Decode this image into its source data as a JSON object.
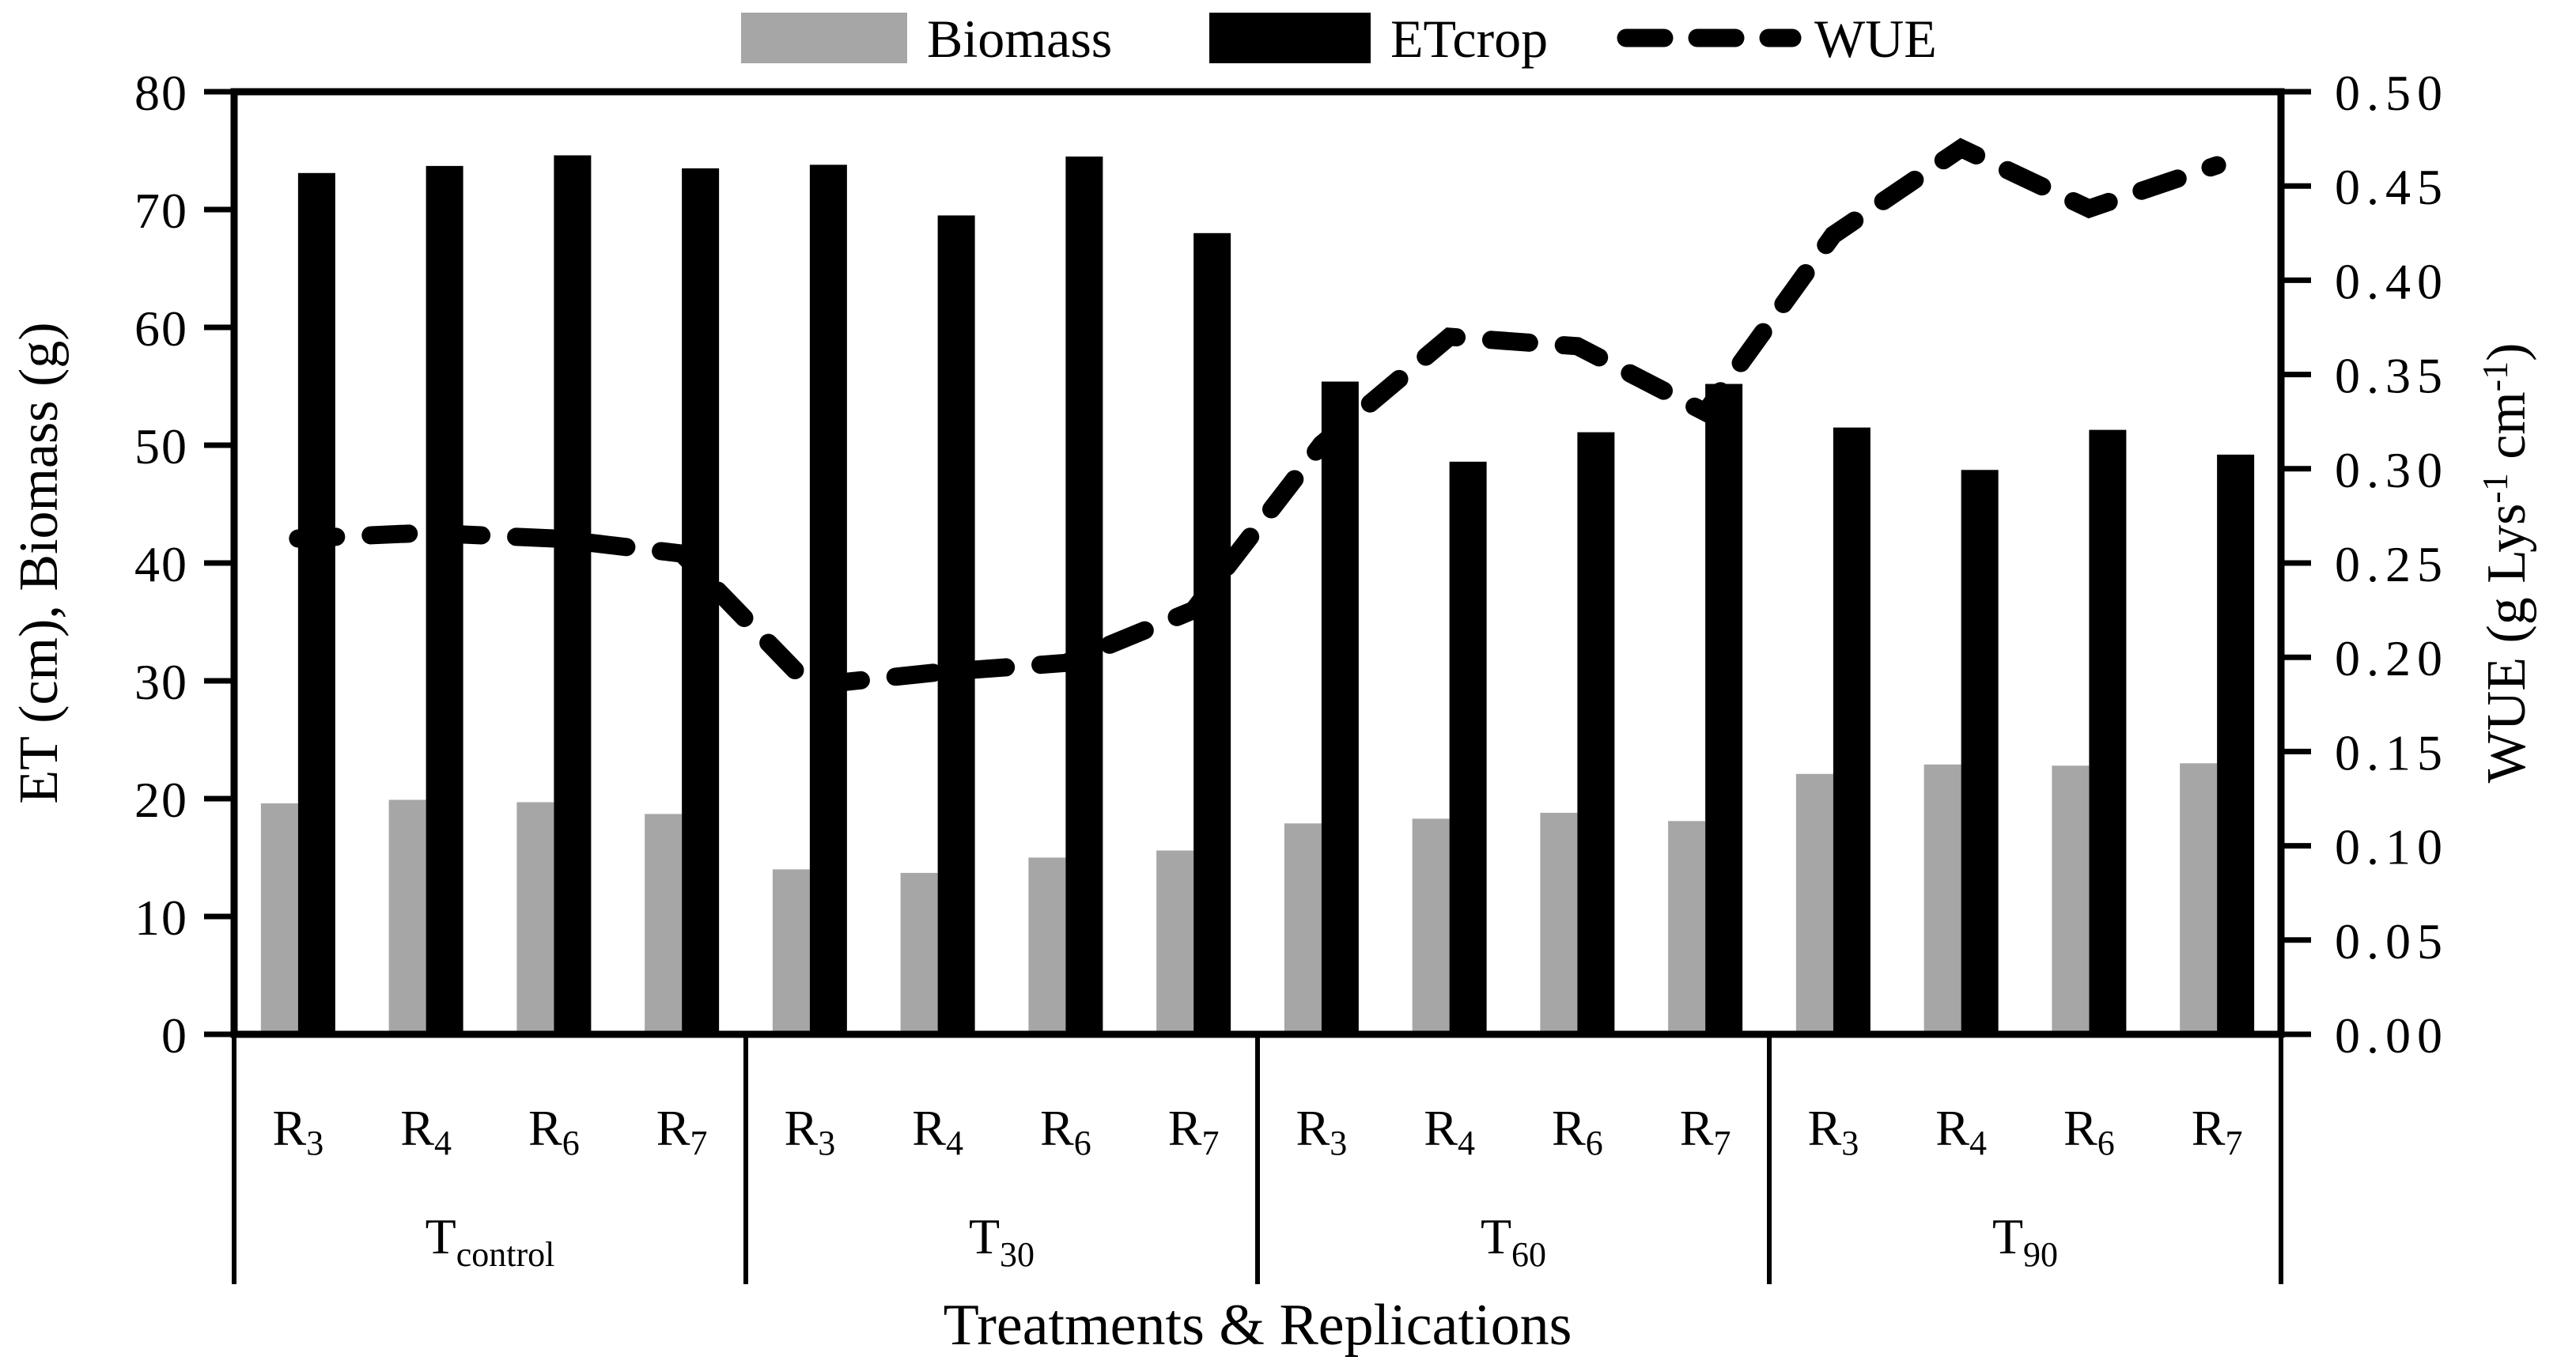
{
  "chart_data": {
    "type": "combo-bar-line",
    "legend": [
      "Biomass",
      "ETcrop",
      "WUE"
    ],
    "x_axis": {
      "title": "Treatments & Replications",
      "replication_prefix": "R",
      "groups": [
        {
          "label_main": "T",
          "label_sub": "control",
          "replications": [
            "3",
            "4",
            "6",
            "7"
          ]
        },
        {
          "label_main": "T",
          "label_sub": "30",
          "replications": [
            "3",
            "4",
            "6",
            "7"
          ]
        },
        {
          "label_main": "T",
          "label_sub": "60",
          "replications": [
            "3",
            "4",
            "6",
            "7"
          ]
        },
        {
          "label_main": "T",
          "label_sub": "90",
          "replications": [
            "3",
            "4",
            "6",
            "7"
          ]
        }
      ]
    },
    "left_axis": {
      "title": "ET (cm), Biomass (g)",
      "min": 0,
      "max": 80,
      "step": 10,
      "tick_labels": [
        "0",
        "10",
        "20",
        "30",
        "40",
        "50",
        "60",
        "70",
        "80"
      ]
    },
    "right_axis": {
      "title_text": "WUE (g Lys-1 cm-1)",
      "title_parts": [
        {
          "t": "WUE (g Lys"
        },
        {
          "t": "-1",
          "sup": true
        },
        {
          "t": " cm"
        },
        {
          "t": "-1",
          "sup": true
        },
        {
          "t": ")"
        }
      ],
      "min": 0.0,
      "max": 0.5,
      "step": 0.05,
      "tick_labels": [
        "0.00",
        "0.05",
        "0.10",
        "0.15",
        "0.20",
        "0.25",
        "0.30",
        "0.35",
        "0.40",
        "0.45",
        "0.50"
      ]
    },
    "series": [
      {
        "name": "Biomass",
        "type": "bar",
        "axis": "left",
        "color": "#a6a6a6",
        "values": [
          19.6,
          19.9,
          19.7,
          18.7,
          14.0,
          13.7,
          15.0,
          15.6,
          17.9,
          18.3,
          18.8,
          18.1,
          22.1,
          22.9,
          22.8,
          23.0
        ]
      },
      {
        "name": "ETcrop",
        "type": "bar",
        "axis": "left",
        "color": "#000000",
        "values": [
          73.1,
          73.7,
          74.6,
          73.5,
          73.8,
          69.5,
          74.5,
          68.0,
          55.4,
          48.6,
          51.1,
          55.2,
          51.5,
          47.9,
          51.3,
          49.2
        ]
      },
      {
        "name": "WUE",
        "type": "line",
        "axis": "right",
        "color": "#000000",
        "dashed": true,
        "values": [
          0.263,
          0.266,
          0.263,
          0.255,
          0.185,
          0.192,
          0.197,
          0.225,
          0.313,
          0.37,
          0.365,
          0.33,
          0.424,
          0.47,
          0.438,
          0.461
        ]
      }
    ]
  }
}
